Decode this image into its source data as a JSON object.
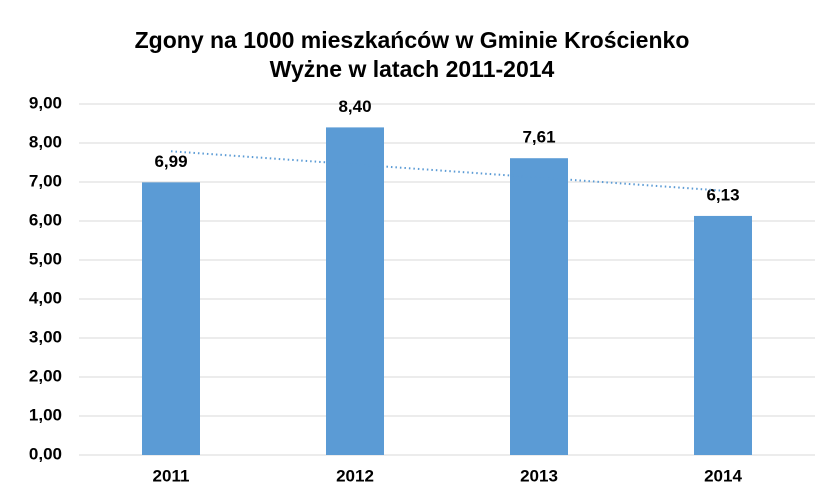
{
  "chart_data": {
    "type": "bar",
    "title": [
      "Zgony na 1000 mieszkańców w Gminie Krościenko",
      "Wyżne w latach 2011-2014"
    ],
    "categories": [
      "2011",
      "2012",
      "2013",
      "2014"
    ],
    "values": [
      6.99,
      8.4,
      7.61,
      6.13
    ],
    "value_labels": [
      "6,99",
      "8,40",
      "7,61",
      "6,13"
    ],
    "color": "#5b9bd5",
    "trendline": "linear",
    "trendline_color": "#5b9bd5",
    "ylim": [
      0,
      9
    ],
    "yticks": [
      {
        "value": 0,
        "label": "0,00"
      },
      {
        "value": 1,
        "label": "1,00"
      },
      {
        "value": 2,
        "label": "2,00"
      },
      {
        "value": 3,
        "label": "3,00"
      },
      {
        "value": 4,
        "label": "4,00"
      },
      {
        "value": 5,
        "label": "5,00"
      },
      {
        "value": 6,
        "label": "6,00"
      },
      {
        "value": 7,
        "label": "7,00"
      },
      {
        "value": 8,
        "label": "8,00"
      },
      {
        "value": 9,
        "label": "9,00"
      }
    ],
    "grid": true
  }
}
